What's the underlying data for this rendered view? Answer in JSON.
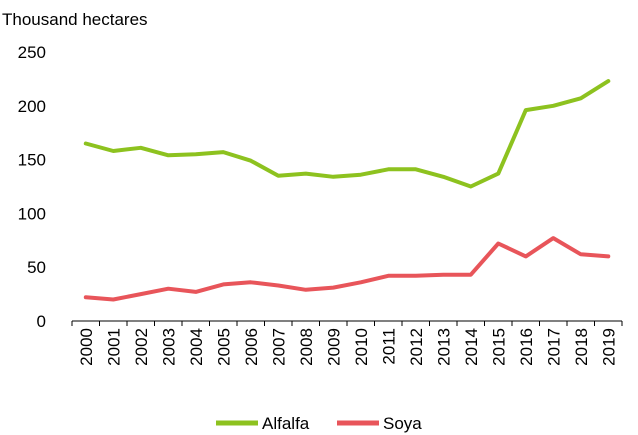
{
  "chart_data": {
    "type": "line",
    "title": "",
    "ylabel": "Thousand hectares",
    "xlabel": "",
    "x": [
      "2000",
      "2001",
      "2002",
      "2003",
      "2004",
      "2005",
      "2006",
      "2007",
      "2008",
      "2009",
      "2010",
      "2011",
      "2012",
      "2013",
      "2014",
      "2015",
      "2016",
      "2017",
      "2018",
      "2019"
    ],
    "ylim": [
      0,
      250
    ],
    "yticks": [
      "0",
      "50",
      "100",
      "150",
      "200",
      "250"
    ],
    "grid": false,
    "legend_position": "bottom-center",
    "series": [
      {
        "name": "Alfalfa",
        "color": "#8dc21f",
        "values": [
          165,
          158,
          161,
          154,
          155,
          157,
          149,
          135,
          137,
          134,
          136,
          141,
          141,
          134,
          125,
          137,
          196,
          200,
          207,
          223
        ]
      },
      {
        "name": "Soya",
        "color": "#e8555a",
        "values": [
          22,
          20,
          25,
          30,
          27,
          34,
          36,
          33,
          29,
          31,
          36,
          42,
          42,
          43,
          43,
          72,
          60,
          77,
          62,
          60
        ]
      }
    ]
  }
}
